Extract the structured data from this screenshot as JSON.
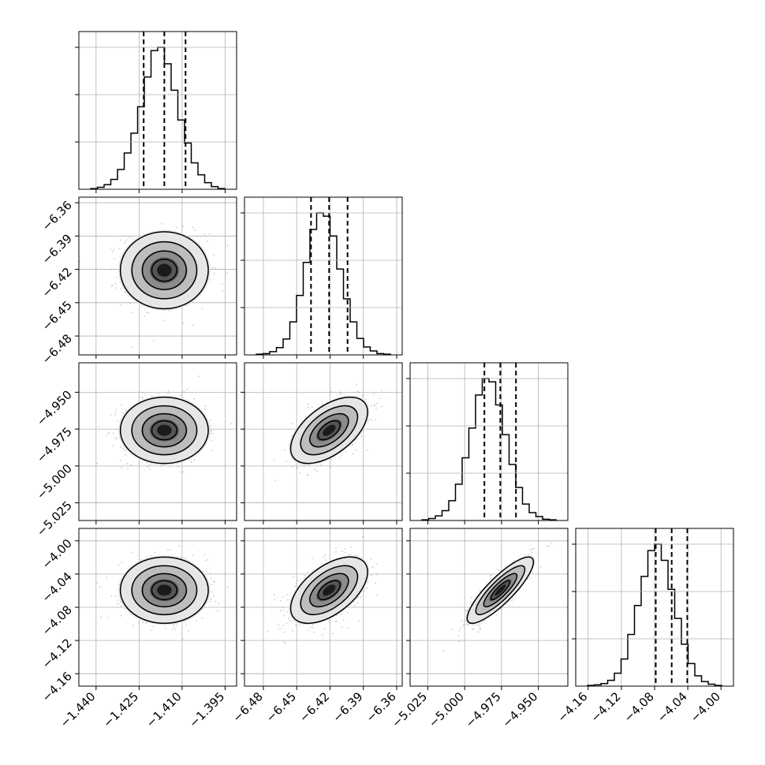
{
  "chart_data": {
    "type": "corner",
    "parameters": 4,
    "panel_axis_ticks": [
      [
        "-1.440",
        "-1.425",
        "-1.410",
        "-1.395"
      ],
      [
        "-6.48",
        "-6.45",
        "-6.42",
        "-6.39",
        "-6.36"
      ],
      [
        "-5.025",
        "-5.000",
        "-4.975",
        "-4.950"
      ],
      [
        "-4.16",
        "-4.12",
        "-4.08",
        "-4.04",
        "-4.00"
      ]
    ],
    "ticks": [
      [
        -1.44,
        -1.425,
        -1.41,
        -1.395
      ],
      [
        -6.48,
        -6.45,
        -6.42,
        -6.39,
        -6.36
      ],
      [
        -5.025,
        -5.0,
        -4.975,
        -4.95
      ],
      [
        -4.16,
        -4.12,
        -4.08,
        -4.04,
        -4.0
      ]
    ],
    "ranges": [
      [
        -1.446,
        -1.391
      ],
      [
        -6.497,
        -6.355
      ],
      [
        -5.037,
        -4.93
      ],
      [
        -4.175,
        -3.985
      ]
    ],
    "quantiles_16_50_84": [
      [
        -1.4234,
        -1.4162,
        -1.4088
      ],
      [
        -6.4371,
        -6.4208,
        -6.4042
      ],
      [
        -4.9866,
        -4.9758,
        -4.9652
      ],
      [
        -4.0786,
        -4.0594,
        -4.0406
      ]
    ],
    "means": [
      -1.4162,
      -6.4208,
      -4.9758,
      -4.0594
    ],
    "sigmas": [
      0.0073,
      0.0165,
      0.0107,
      0.019
    ],
    "correlations": [
      [
        0,
        1,
        0.0
      ],
      [
        0,
        2,
        0.0
      ],
      [
        0,
        3,
        0.0
      ],
      [
        1,
        2,
        0.55
      ],
      [
        1,
        3,
        0.55
      ],
      [
        2,
        3,
        0.85
      ]
    ],
    "histograms": [
      [
        1,
        3,
        7,
        15,
        30,
        55,
        85,
        125,
        170,
        210,
        215,
        190,
        150,
        105,
        70,
        40,
        22,
        10,
        4,
        1
      ],
      [
        1,
        2,
        5,
        11,
        24,
        50,
        90,
        140,
        190,
        215,
        210,
        180,
        130,
        85,
        50,
        25,
        12,
        6,
        2,
        1
      ],
      [
        1,
        3,
        7,
        15,
        30,
        55,
        95,
        140,
        190,
        215,
        210,
        175,
        130,
        85,
        50,
        25,
        12,
        6,
        2,
        1
      ],
      [
        1,
        2,
        4,
        9,
        20,
        42,
        80,
        125,
        170,
        210,
        220,
        195,
        150,
        105,
        65,
        35,
        16,
        7,
        3,
        1
      ]
    ],
    "contour_levels": [
      0.5,
      1.0,
      1.5,
      2.0
    ],
    "colors": {
      "line": "#000000",
      "points": "#9a9a9a",
      "grid": "#b0b0b0"
    }
  }
}
